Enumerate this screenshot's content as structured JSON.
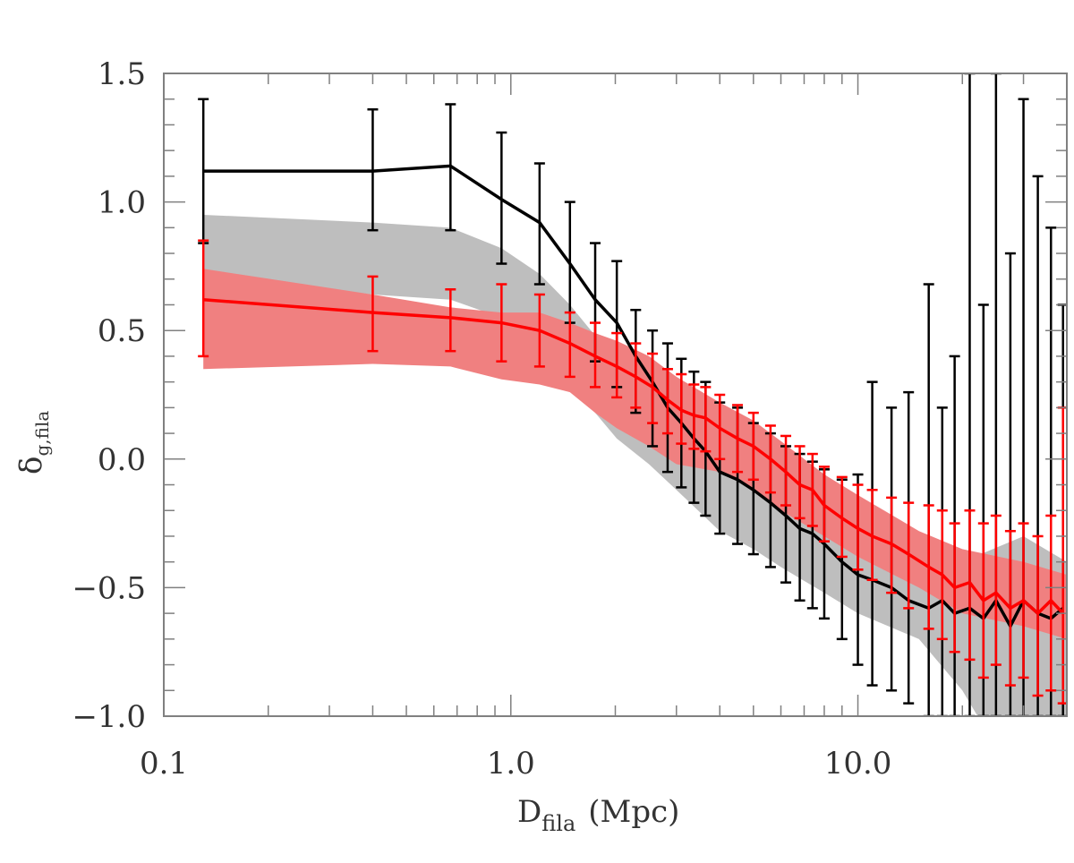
{
  "chart_data": {
    "type": "line",
    "title": "",
    "xlabel": "D",
    "xlabel_sub": "fila",
    "xlabel_unit": "(Mpc)",
    "ylabel": "δ",
    "ylabel_sub": "g,fila",
    "x_scale": "log",
    "xlim": [
      0.1,
      40
    ],
    "ylim": [
      -1.0,
      1.5
    ],
    "x_ticks": [
      {
        "v": 0.1,
        "label": "0.1"
      },
      {
        "v": 1,
        "label": "1.0"
      },
      {
        "v": 10,
        "label": "10.0"
      }
    ],
    "y_ticks": [
      {
        "v": -1.0,
        "label": "−1.0"
      },
      {
        "v": -0.5,
        "label": "−0.5"
      },
      {
        "v": 0.0,
        "label": "0.0"
      },
      {
        "v": 0.5,
        "label": "0.5"
      },
      {
        "v": 1.0,
        "label": "1.0"
      },
      {
        "v": 1.5,
        "label": "1.5"
      }
    ],
    "grid": false,
    "colors": {
      "black_series": "#000000",
      "red_series": "#ff0000",
      "gray_band": "#bebebe",
      "red_band": "#f08080",
      "axis": "#808080"
    },
    "bands": [
      {
        "color": "#bebebe",
        "points": [
          [
            0.13,
            0.72,
            0.95
          ],
          [
            0.4,
            0.64,
            0.92
          ],
          [
            0.67,
            0.62,
            0.9
          ],
          [
            0.94,
            0.55,
            0.82
          ],
          [
            1.21,
            0.44,
            0.72
          ],
          [
            1.48,
            0.3,
            0.6
          ],
          [
            1.75,
            0.18,
            0.48
          ],
          [
            2.02,
            0.08,
            0.38
          ],
          [
            2.5,
            -0.02,
            0.25
          ],
          [
            3.0,
            -0.12,
            0.12
          ],
          [
            4.0,
            -0.28,
            0.0
          ],
          [
            5.0,
            -0.35,
            -0.1
          ],
          [
            6.0,
            -0.42,
            -0.18
          ],
          [
            8.0,
            -0.52,
            -0.28
          ],
          [
            10.0,
            -0.6,
            -0.35
          ],
          [
            15.0,
            -0.7,
            -0.45
          ],
          [
            20.0,
            -0.9,
            -0.4
          ],
          [
            30.0,
            -1.3,
            -0.3
          ],
          [
            40.0,
            -1.5,
            -0.4
          ]
        ]
      },
      {
        "color": "#f08080",
        "points": [
          [
            0.13,
            0.35,
            0.74
          ],
          [
            0.4,
            0.37,
            0.64
          ],
          [
            0.67,
            0.36,
            0.59
          ],
          [
            0.94,
            0.31,
            0.57
          ],
          [
            1.21,
            0.29,
            0.57
          ],
          [
            1.48,
            0.26,
            0.53
          ],
          [
            1.75,
            0.18,
            0.49
          ],
          [
            2.02,
            0.12,
            0.46
          ],
          [
            2.5,
            0.05,
            0.4
          ],
          [
            3.0,
            -0.02,
            0.32
          ],
          [
            4.0,
            -0.05,
            0.22
          ],
          [
            5.0,
            -0.12,
            0.15
          ],
          [
            6.0,
            -0.2,
            0.07
          ],
          [
            8.0,
            -0.3,
            -0.06
          ],
          [
            10.0,
            -0.38,
            -0.14
          ],
          [
            15.0,
            -0.5,
            -0.28
          ],
          [
            20.0,
            -0.6,
            -0.35
          ],
          [
            30.0,
            -0.65,
            -0.4
          ],
          [
            40.0,
            -0.7,
            -0.45
          ]
        ]
      }
    ],
    "series": [
      {
        "color": "#000000",
        "points": [
          [
            0.13,
            1.12,
            0.84,
            1.4
          ],
          [
            0.4,
            1.12,
            0.89,
            1.36
          ],
          [
            0.67,
            1.14,
            0.89,
            1.38
          ],
          [
            0.94,
            1.01,
            0.76,
            1.27
          ],
          [
            1.21,
            0.92,
            0.68,
            1.15
          ],
          [
            1.48,
            0.76,
            0.53,
            1.0
          ],
          [
            1.75,
            0.62,
            0.38,
            0.84
          ],
          [
            2.02,
            0.53,
            0.28,
            0.77
          ],
          [
            2.29,
            0.4,
            0.18,
            0.58
          ],
          [
            2.56,
            0.3,
            0.05,
            0.5
          ],
          [
            2.83,
            0.2,
            -0.05,
            0.45
          ],
          [
            3.1,
            0.14,
            -0.11,
            0.39
          ],
          [
            3.37,
            0.08,
            -0.17,
            0.34
          ],
          [
            3.64,
            0.03,
            -0.22,
            0.3
          ],
          [
            4.0,
            -0.05,
            -0.29,
            0.22
          ],
          [
            4.5,
            -0.08,
            -0.33,
            0.2
          ],
          [
            5.0,
            -0.12,
            -0.37,
            0.14
          ],
          [
            5.6,
            -0.17,
            -0.42,
            0.1
          ],
          [
            6.2,
            -0.22,
            -0.48,
            0.05
          ],
          [
            6.8,
            -0.27,
            -0.55,
            0.02
          ],
          [
            7.4,
            -0.29,
            -0.58,
            -0.01
          ],
          [
            8.0,
            -0.33,
            -0.62,
            -0.04
          ],
          [
            9.0,
            -0.4,
            -0.7,
            -0.08
          ],
          [
            10.0,
            -0.45,
            -0.8,
            -0.06
          ],
          [
            11.0,
            -0.47,
            -0.88,
            0.3
          ],
          [
            12.5,
            -0.5,
            -0.9,
            0.2
          ],
          [
            14.0,
            -0.55,
            -0.95,
            0.26
          ],
          [
            16.0,
            -0.58,
            -1.0,
            0.68
          ],
          [
            17.5,
            -0.55,
            -1.0,
            0.2
          ],
          [
            19.0,
            -0.6,
            -1.0,
            0.4
          ],
          [
            21.0,
            -0.58,
            -1.0,
            1.5
          ],
          [
            23.0,
            -0.62,
            -1.0,
            0.6
          ],
          [
            25.0,
            -0.55,
            -1.0,
            1.5
          ],
          [
            27.5,
            -0.65,
            -1.0,
            0.8
          ],
          [
            30.0,
            -0.55,
            -1.0,
            1.4
          ],
          [
            33.0,
            -0.6,
            -1.0,
            1.1
          ],
          [
            36.0,
            -0.62,
            -1.0,
            0.9
          ],
          [
            39.0,
            -0.58,
            -1.0,
            0.6
          ]
        ]
      },
      {
        "color": "#ff0000",
        "points": [
          [
            0.13,
            0.62,
            0.4,
            0.85
          ],
          [
            0.4,
            0.57,
            0.42,
            0.71
          ],
          [
            0.67,
            0.55,
            0.42,
            0.66
          ],
          [
            0.94,
            0.53,
            0.38,
            0.68
          ],
          [
            1.21,
            0.5,
            0.36,
            0.64
          ],
          [
            1.48,
            0.45,
            0.32,
            0.57
          ],
          [
            1.75,
            0.4,
            0.28,
            0.53
          ],
          [
            2.02,
            0.36,
            0.24,
            0.49
          ],
          [
            2.29,
            0.32,
            0.2,
            0.45
          ],
          [
            2.56,
            0.28,
            0.14,
            0.41
          ],
          [
            2.83,
            0.23,
            0.1,
            0.35
          ],
          [
            3.1,
            0.19,
            0.06,
            0.33
          ],
          [
            3.37,
            0.17,
            0.04,
            0.29
          ],
          [
            3.64,
            0.16,
            0.03,
            0.28
          ],
          [
            4.0,
            0.12,
            0.0,
            0.25
          ],
          [
            4.5,
            0.08,
            -0.05,
            0.21
          ],
          [
            5.0,
            0.05,
            -0.08,
            0.18
          ],
          [
            5.6,
            0.0,
            -0.13,
            0.13
          ],
          [
            6.2,
            -0.05,
            -0.18,
            0.09
          ],
          [
            6.8,
            -0.1,
            -0.23,
            0.05
          ],
          [
            7.4,
            -0.12,
            -0.26,
            0.02
          ],
          [
            8.0,
            -0.18,
            -0.32,
            -0.03
          ],
          [
            9.0,
            -0.23,
            -0.38,
            -0.07
          ],
          [
            10.0,
            -0.27,
            -0.43,
            -0.1
          ],
          [
            11.0,
            -0.3,
            -0.47,
            -0.12
          ],
          [
            12.5,
            -0.33,
            -0.52,
            -0.15
          ],
          [
            14.0,
            -0.37,
            -0.58,
            -0.17
          ],
          [
            16.0,
            -0.42,
            -0.66,
            -0.18
          ],
          [
            17.5,
            -0.45,
            -0.7,
            -0.2
          ],
          [
            19.0,
            -0.5,
            -0.75,
            -0.25
          ],
          [
            21.0,
            -0.48,
            -0.78,
            -0.2
          ],
          [
            23.0,
            -0.55,
            -0.85,
            -0.25
          ],
          [
            25.0,
            -0.52,
            -0.8,
            -0.22
          ],
          [
            27.5,
            -0.58,
            -0.88,
            -0.28
          ],
          [
            30.0,
            -0.55,
            -0.85,
            -0.25
          ],
          [
            33.0,
            -0.6,
            -0.92,
            -0.3
          ],
          [
            36.0,
            -0.55,
            -0.9,
            -0.22
          ],
          [
            39.0,
            -0.6,
            -0.95,
            0.2
          ]
        ]
      }
    ]
  }
}
